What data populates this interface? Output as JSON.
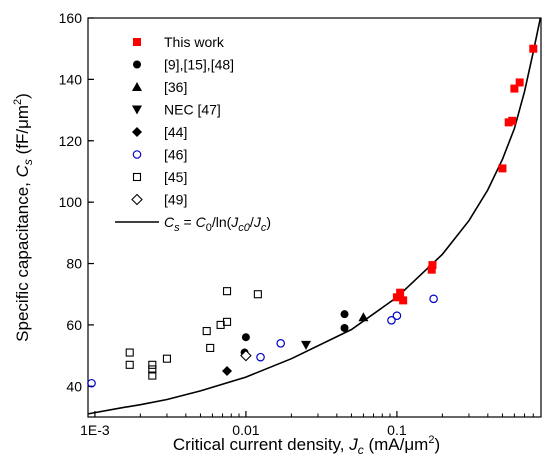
{
  "chart_data": {
    "type": "scatter",
    "x_scale": "log",
    "xlim": [
      0.0009,
      0.9
    ],
    "ylim": [
      30,
      160
    ],
    "xticks": [
      0.001,
      0.01,
      0.1
    ],
    "xtick_labels": [
      "1E-3",
      "0.01",
      "0.1"
    ],
    "yticks": [
      40,
      60,
      80,
      100,
      120,
      140,
      160
    ],
    "ytick_labels": [
      "40",
      "60",
      "80",
      "100",
      "120",
      "140",
      "160"
    ],
    "xlabel": {
      "main": "Critical current density, ",
      "var": "J",
      "sub": "c",
      "unit": " (mA/μm",
      "sup": "2",
      "end": ")"
    },
    "ylabel": {
      "main": "Specific capacitance, ",
      "var": "C",
      "sub": "s",
      "unit": " (fF/μm",
      "sup": "2",
      "end": ")"
    },
    "grid": false,
    "legend_position": "top-left",
    "series": [
      {
        "name": "This work",
        "marker": "square-filled",
        "color": "#ff0000",
        "x": [
          0.1,
          0.105,
          0.11,
          0.17,
          0.172,
          0.5,
          0.55,
          0.58,
          0.6,
          0.65,
          0.8
        ],
        "y": [
          69,
          70.5,
          68,
          78,
          79.5,
          111,
          126,
          126.5,
          137,
          139,
          150
        ]
      },
      {
        "name": "[9],[15],[48]",
        "marker": "circle-filled",
        "color": "#000000",
        "x": [
          0.0098,
          0.01,
          0.045,
          0.045
        ],
        "y": [
          51,
          56,
          63.5,
          59
        ]
      },
      {
        "name": "[36]",
        "marker": "triangle-up-filled",
        "color": "#000000",
        "x": [
          0.06
        ],
        "y": [
          62.5
        ]
      },
      {
        "name": "NEC [47]",
        "marker": "triangle-down-filled",
        "color": "#000000",
        "x": [
          0.025
        ],
        "y": [
          53.5
        ]
      },
      {
        "name": "[44]",
        "marker": "diamond-filled",
        "color": "#000000",
        "x": [
          0.0075
        ],
        "y": [
          45
        ]
      },
      {
        "name": "[46]",
        "marker": "circle-open",
        "color": "#0000cc",
        "x": [
          0.00095,
          0.0125,
          0.017,
          0.092,
          0.1,
          0.175
        ],
        "y": [
          41,
          49.5,
          54,
          61.5,
          63,
          68.5
        ]
      },
      {
        "name": "[45]",
        "marker": "square-open",
        "color": "#000000",
        "x": [
          0.0017,
          0.0017,
          0.0024,
          0.0024,
          0.0024,
          0.003,
          0.0055,
          0.0058,
          0.0068,
          0.0075,
          0.0075,
          0.012
        ],
        "y": [
          51,
          47,
          47,
          45.5,
          43.5,
          49,
          58,
          52.5,
          60,
          61,
          71,
          70
        ]
      },
      {
        "name": "[49]",
        "marker": "diamond-open",
        "color": "#000000",
        "x": [
          0.01
        ],
        "y": [
          50
        ]
      },
      {
        "name": "",
        "marker": "line",
        "color": "#000000",
        "legend_label": {
          "var": "C",
          "sub": "s",
          "eq": " = ",
          "c0": "C",
          "c0sub": "0",
          "ln": "/ln(",
          "j1": "J",
          "j1sub": "c0",
          "slash": "/",
          "j2": "J",
          "j2sub": "c",
          "close": ")"
        },
        "x": [
          0.0009,
          0.0015,
          0.002,
          0.003,
          0.005,
          0.01,
          0.02,
          0.05,
          0.1,
          0.2,
          0.3,
          0.4,
          0.5,
          0.6,
          0.7,
          0.8,
          0.9
        ],
        "y": [
          31,
          33,
          34,
          35.7,
          38.5,
          43,
          49,
          58.5,
          69,
          83,
          94,
          104,
          114,
          124,
          136,
          149,
          161
        ]
      }
    ]
  }
}
